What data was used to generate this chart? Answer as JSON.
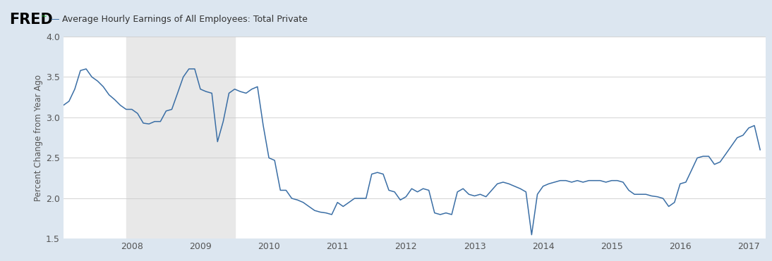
{
  "title": "Average Hourly Earnings of All Employees: Total Private",
  "ylabel": "Percent Change from Year Ago",
  "line_color": "#3a6ea5",
  "background_color": "#dce6f0",
  "plot_bg_color": "#ffffff",
  "recession_color": "#e8e8e8",
  "recession_start": 2007.917,
  "recession_end": 2009.5,
  "ylim": [
    1.5,
    4.0
  ],
  "yticks": [
    1.5,
    2.0,
    2.5,
    3.0,
    3.5,
    4.0
  ],
  "xlim": [
    2007.0,
    2017.25
  ],
  "xticks": [
    2008,
    2009,
    2010,
    2011,
    2012,
    2013,
    2014,
    2015,
    2016,
    2017
  ],
  "dates": [
    2007.0,
    2007.083,
    2007.167,
    2007.25,
    2007.333,
    2007.417,
    2007.5,
    2007.583,
    2007.667,
    2007.75,
    2007.833,
    2007.917,
    2008.0,
    2008.083,
    2008.167,
    2008.25,
    2008.333,
    2008.417,
    2008.5,
    2008.583,
    2008.667,
    2008.75,
    2008.833,
    2008.917,
    2009.0,
    2009.083,
    2009.167,
    2009.25,
    2009.333,
    2009.417,
    2009.5,
    2009.583,
    2009.667,
    2009.75,
    2009.833,
    2009.917,
    2010.0,
    2010.083,
    2010.167,
    2010.25,
    2010.333,
    2010.417,
    2010.5,
    2010.583,
    2010.667,
    2010.75,
    2010.833,
    2010.917,
    2011.0,
    2011.083,
    2011.167,
    2011.25,
    2011.333,
    2011.417,
    2011.5,
    2011.583,
    2011.667,
    2011.75,
    2011.833,
    2011.917,
    2012.0,
    2012.083,
    2012.167,
    2012.25,
    2012.333,
    2012.417,
    2012.5,
    2012.583,
    2012.667,
    2012.75,
    2012.833,
    2012.917,
    2013.0,
    2013.083,
    2013.167,
    2013.25,
    2013.333,
    2013.417,
    2013.5,
    2013.583,
    2013.667,
    2013.75,
    2013.833,
    2013.917,
    2014.0,
    2014.083,
    2014.167,
    2014.25,
    2014.333,
    2014.417,
    2014.5,
    2014.583,
    2014.667,
    2014.75,
    2014.833,
    2014.917,
    2015.0,
    2015.083,
    2015.167,
    2015.25,
    2015.333,
    2015.417,
    2015.5,
    2015.583,
    2015.667,
    2015.75,
    2015.833,
    2015.917,
    2016.0,
    2016.083,
    2016.167,
    2016.25,
    2016.333,
    2016.417,
    2016.5,
    2016.583,
    2016.667,
    2016.75,
    2016.833,
    2016.917,
    2017.0,
    2017.083,
    2017.167
  ],
  "values": [
    3.15,
    3.2,
    3.35,
    3.58,
    3.6,
    3.5,
    3.45,
    3.38,
    3.28,
    3.22,
    3.15,
    3.1,
    3.1,
    3.05,
    2.93,
    2.92,
    2.95,
    2.95,
    3.08,
    3.1,
    3.3,
    3.5,
    3.6,
    3.6,
    3.35,
    3.32,
    3.3,
    2.7,
    2.95,
    3.3,
    3.35,
    3.32,
    3.3,
    3.35,
    3.38,
    2.9,
    2.5,
    2.47,
    2.1,
    2.1,
    2.0,
    1.98,
    1.95,
    1.9,
    1.85,
    1.83,
    1.82,
    1.8,
    1.95,
    1.9,
    1.95,
    2.0,
    2.0,
    2.0,
    2.3,
    2.32,
    2.3,
    2.1,
    2.08,
    1.98,
    2.02,
    2.12,
    2.08,
    2.12,
    2.1,
    1.82,
    1.8,
    1.82,
    1.8,
    2.08,
    2.12,
    2.05,
    2.03,
    2.05,
    2.02,
    2.1,
    2.18,
    2.2,
    2.18,
    2.15,
    2.12,
    2.08,
    1.55,
    2.05,
    2.15,
    2.18,
    2.2,
    2.22,
    2.22,
    2.2,
    2.22,
    2.2,
    2.22,
    2.22,
    2.22,
    2.2,
    2.22,
    2.22,
    2.2,
    2.1,
    2.05,
    2.05,
    2.05,
    2.03,
    2.02,
    2.0,
    1.9,
    1.95,
    2.18,
    2.2,
    2.35,
    2.5,
    2.52,
    2.52,
    2.42,
    2.45,
    2.55,
    2.65,
    2.75,
    2.78,
    2.87,
    2.9,
    2.6
  ],
  "header_bg": "#dce6f0",
  "fred_color": "#000000",
  "title_color": "#333333",
  "tick_color": "#555555",
  "grid_color": "#cccccc"
}
